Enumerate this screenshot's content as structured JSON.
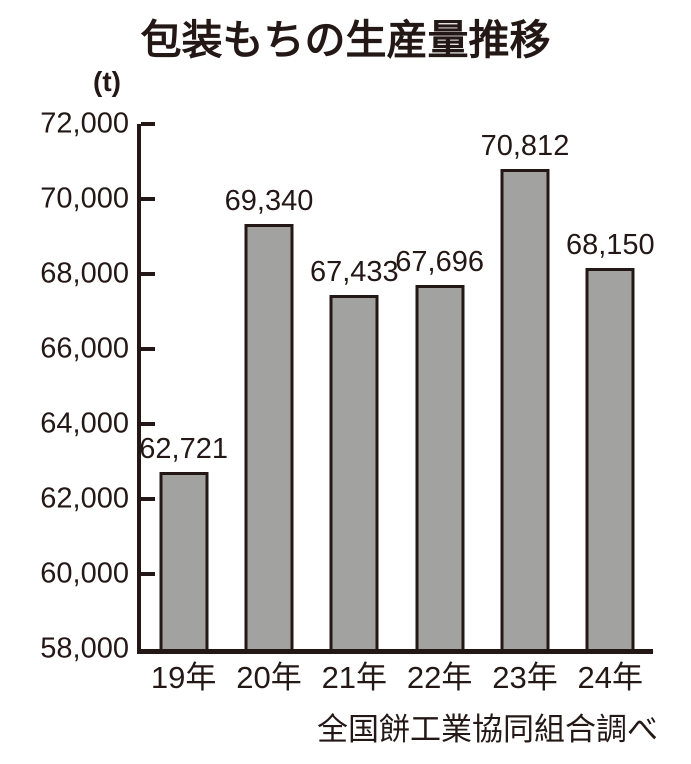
{
  "page": {
    "title": "包装もちの生産量推移",
    "unit_label": "(t)",
    "source": "全国餅工業協同組合調べ"
  },
  "chart_data": {
    "type": "bar",
    "title": "包装もちの生産量推移",
    "unit_label": "(t)",
    "categories": [
      "19年",
      "20年",
      "21年",
      "22年",
      "23年",
      "24年"
    ],
    "values": [
      62721,
      69340,
      67433,
      67696,
      70812,
      68150
    ],
    "value_labels": [
      "62,721",
      "69,340",
      "67,433",
      "67,696",
      "70,812",
      "68,150"
    ],
    "xlabel": "",
    "ylabel": "(t)",
    "ylim": [
      58000,
      72000
    ],
    "yticks": [
      {
        "value": 58000,
        "label": "58,000"
      },
      {
        "value": 60000,
        "label": "60,000"
      },
      {
        "value": 62000,
        "label": "62,000"
      },
      {
        "value": 64000,
        "label": "64,000"
      },
      {
        "value": 66000,
        "label": "66,000"
      },
      {
        "value": 68000,
        "label": "68,000"
      },
      {
        "value": 70000,
        "label": "70,000"
      },
      {
        "value": 72000,
        "label": "72,000"
      }
    ],
    "grid": false,
    "legend_position": "none",
    "source": "全国餅工業協同組合調べ",
    "colors": {
      "background": "#ffffff",
      "bar_fill": "#a2a2a1",
      "bar_border": "#231815",
      "axis": "#231815",
      "text": "#231815"
    }
  }
}
